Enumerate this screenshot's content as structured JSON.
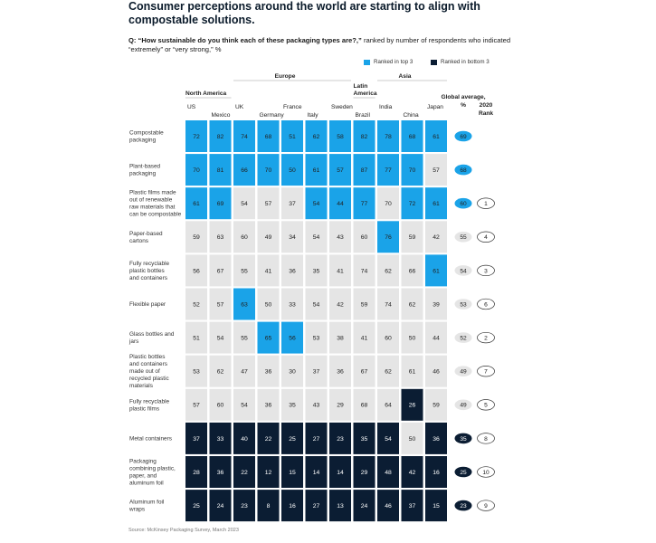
{
  "title": "Consumer perceptions around the world are starting to align with compostable solutions.",
  "question": {
    "prefix": "Q: “How sustainable do you think each of these packaging types are?,”",
    "suffix": " ranked by number of respondents who indicated “extremely” or “very strong,” %"
  },
  "legend": {
    "top3": "Ranked in top 3",
    "bottom3": "Ranked in bottom 3"
  },
  "colors": {
    "top3": "#1aa3e8",
    "bottom3": "#0b1d33",
    "neutral": "#e5e5e5",
    "text_dark": "#222222",
    "text_light": "#ffffff"
  },
  "source": "Source: McKinsey Packaging Survey, March 2023",
  "chart_data": {
    "type": "table",
    "title": "Consumer perceptions around the world are starting to align with compostable solutions.",
    "regions": [
      {
        "label": "North America",
        "countries": [
          "US",
          "Mexico"
        ]
      },
      {
        "label": "Europe",
        "countries": [
          "UK",
          "Germany",
          "France",
          "Italy",
          "Sweden"
        ]
      },
      {
        "label": "Latin America",
        "countries": [
          "Brazil"
        ]
      },
      {
        "label": "Asia",
        "countries": [
          "India",
          "China",
          "Japan"
        ]
      }
    ],
    "columns": [
      "US",
      "Mexico",
      "UK",
      "Germany",
      "France",
      "Italy",
      "Sweden",
      "Brazil",
      "India",
      "China",
      "Japan"
    ],
    "global_header": "Global average, %",
    "rank_header": "2020 Rank",
    "rows": [
      {
        "label": "Compostable packaging",
        "values": [
          72,
          82,
          74,
          68,
          51,
          62,
          58,
          82,
          78,
          68,
          61
        ],
        "status": [
          "t",
          "t",
          "t",
          "t",
          "t",
          "t",
          "t",
          "t",
          "t",
          "t",
          "t"
        ],
        "global": 69,
        "global_status": "t",
        "rank": null
      },
      {
        "label": "Plant-based packaging",
        "values": [
          70,
          81,
          66,
          70,
          50,
          61,
          57,
          87,
          77,
          70,
          57
        ],
        "status": [
          "t",
          "t",
          "t",
          "t",
          "t",
          "t",
          "t",
          "t",
          "t",
          "t",
          "n"
        ],
        "global": 68,
        "global_status": "t",
        "rank": null
      },
      {
        "label": "Plastic films made out of renewable raw materials that can be compostable",
        "values": [
          61,
          69,
          54,
          57,
          37,
          54,
          44,
          77,
          70,
          72,
          61
        ],
        "status": [
          "t",
          "t",
          "n",
          "n",
          "n",
          "t",
          "t",
          "t",
          "n",
          "t",
          "t"
        ],
        "global": 60,
        "global_status": "t",
        "rank": 1
      },
      {
        "label": "Paper-based cartons",
        "values": [
          59,
          63,
          60,
          49,
          34,
          54,
          43,
          60,
          76,
          59,
          42
        ],
        "status": [
          "n",
          "n",
          "n",
          "n",
          "n",
          "n",
          "n",
          "n",
          "t",
          "n",
          "n"
        ],
        "global": 55,
        "global_status": "n",
        "rank": 4
      },
      {
        "label": "Fully recyclable plastic bottles and containers",
        "values": [
          56,
          67,
          55,
          41,
          36,
          35,
          41,
          74,
          62,
          66,
          61
        ],
        "status": [
          "n",
          "n",
          "n",
          "n",
          "n",
          "n",
          "n",
          "n",
          "n",
          "n",
          "t"
        ],
        "global": 54,
        "global_status": "n",
        "rank": 3
      },
      {
        "label": "Flexible paper",
        "values": [
          52,
          57,
          63,
          50,
          33,
          54,
          42,
          59,
          74,
          62,
          39
        ],
        "status": [
          "n",
          "n",
          "t",
          "n",
          "n",
          "n",
          "n",
          "n",
          "n",
          "n",
          "n"
        ],
        "global": 53,
        "global_status": "n",
        "rank": 6
      },
      {
        "label": "Glass bottles and jars",
        "values": [
          51,
          54,
          55,
          65,
          56,
          53,
          38,
          41,
          60,
          50,
          44
        ],
        "status": [
          "n",
          "n",
          "n",
          "t",
          "t",
          "n",
          "n",
          "n",
          "n",
          "n",
          "n"
        ],
        "global": 52,
        "global_status": "n",
        "rank": 2
      },
      {
        "label": "Plastic bottles and containers made out of recycled plastic materials",
        "values": [
          53,
          62,
          47,
          36,
          30,
          37,
          36,
          67,
          62,
          61,
          46
        ],
        "status": [
          "n",
          "n",
          "n",
          "n",
          "n",
          "n",
          "n",
          "n",
          "n",
          "n",
          "n"
        ],
        "global": 49,
        "global_status": "n",
        "rank": 7
      },
      {
        "label": "Fully recyclable plastic films",
        "values": [
          57,
          60,
          54,
          36,
          35,
          43,
          29,
          68,
          64,
          26,
          59
        ],
        "status": [
          "n",
          "n",
          "n",
          "n",
          "n",
          "n",
          "n",
          "n",
          "n",
          "b",
          "n"
        ],
        "global": 49,
        "global_status": "n",
        "rank": 5
      },
      {
        "label": "Metal containers",
        "values": [
          37,
          33,
          40,
          22,
          25,
          27,
          23,
          35,
          54,
          50,
          36
        ],
        "status": [
          "b",
          "b",
          "b",
          "b",
          "b",
          "b",
          "b",
          "b",
          "b",
          "n",
          "b"
        ],
        "global": 35,
        "global_status": "b",
        "rank": 8
      },
      {
        "label": "Packaging combining plastic, paper, and aluminum foil",
        "values": [
          28,
          36,
          22,
          12,
          15,
          14,
          14,
          29,
          48,
          42,
          16
        ],
        "status": [
          "b",
          "b",
          "b",
          "b",
          "b",
          "b",
          "b",
          "b",
          "b",
          "b",
          "b"
        ],
        "global": 25,
        "global_status": "b",
        "rank": 10
      },
      {
        "label": "Aluminum foil wraps",
        "values": [
          25,
          24,
          23,
          8,
          16,
          27,
          13,
          24,
          46,
          37,
          15
        ],
        "status": [
          "b",
          "b",
          "b",
          "b",
          "b",
          "b",
          "b",
          "b",
          "b",
          "b",
          "b"
        ],
        "global": 23,
        "global_status": "b",
        "rank": 9
      }
    ]
  }
}
